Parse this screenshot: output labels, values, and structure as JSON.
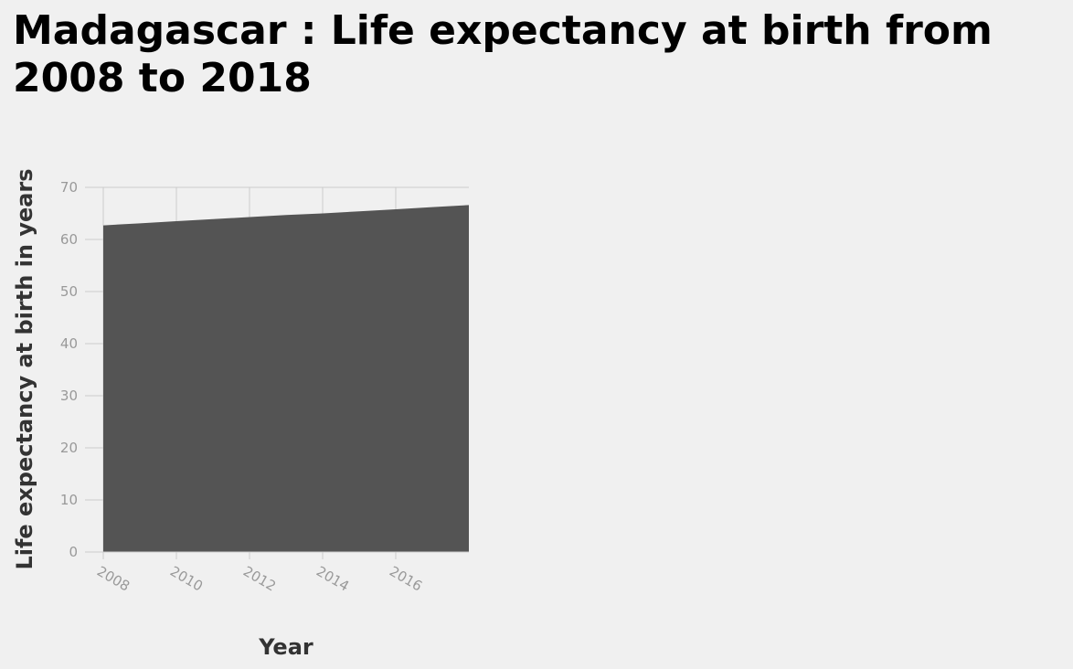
{
  "colors": {
    "background": "#f0f0f0",
    "area_fill": "#545454",
    "grid": "#cccccc",
    "tick_text": "#999999",
    "axis_title": "#333333"
  },
  "chart_data": {
    "type": "area",
    "title": "Madagascar : Life expectancy at birth from 2008 to 2018",
    "xlabel": "Year",
    "ylabel": "Life expectancy at birth in years",
    "x": [
      2008,
      2009,
      2010,
      2011,
      2012,
      2013,
      2014,
      2015,
      2016,
      2017,
      2018
    ],
    "y": [
      62.7,
      63.1,
      63.5,
      63.9,
      64.3,
      64.7,
      65.0,
      65.4,
      65.8,
      66.2,
      66.6
    ],
    "x_ticks": [
      "2008",
      "2010",
      "2012",
      "2014",
      "2016"
    ],
    "y_ticks": [
      "0",
      "10",
      "20",
      "30",
      "40",
      "50",
      "60",
      "70"
    ],
    "xlim": [
      2008,
      2018
    ],
    "ylim": [
      0,
      70
    ],
    "grid": true,
    "legend": "none"
  }
}
